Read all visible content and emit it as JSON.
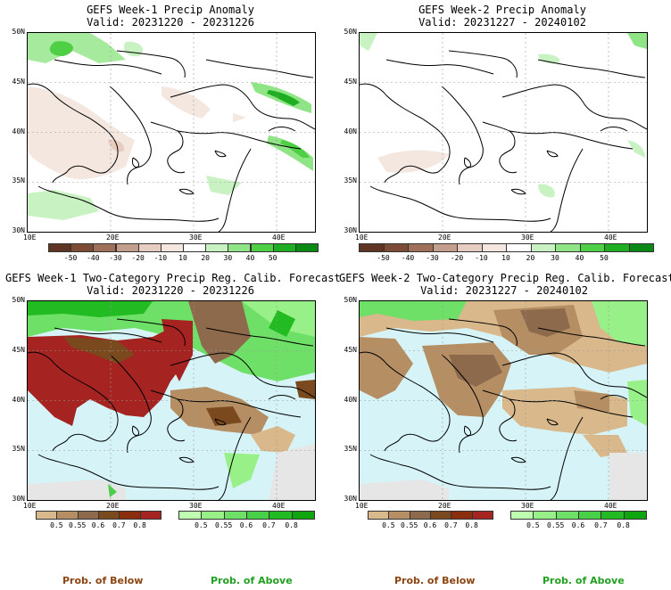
{
  "panels": [
    {
      "title": "GEFS Week-1 Precip Anomaly",
      "valid": "Valid: 20231220 - 20231226"
    },
    {
      "title": "GEFS Week-2 Precip Anomaly",
      "valid": "Valid: 20231227 - 20240102"
    },
    {
      "title": "GEFS Week-1 Two-Category Precip Reg. Calib. Forecast",
      "valid": "Valid: 20231220 - 20231226"
    },
    {
      "title": "GEFS Week-2 Two-Category Precip Reg. Calib. Forecast",
      "valid": "Valid: 20231227 - 20240102"
    }
  ],
  "lat_labels": [
    "50N",
    "45N",
    "40N",
    "35N",
    "30N"
  ],
  "lon_labels": [
    "10E",
    "20E",
    "30E",
    "40E"
  ],
  "anomaly_scale": {
    "labels": [
      "-50",
      "-40",
      "-30",
      "-20",
      "-10",
      "10",
      "20",
      "30",
      "40",
      "50"
    ],
    "colors": [
      "#5e3623",
      "#7d4c37",
      "#9e6f5b",
      "#c49e8c",
      "#e6cdc0",
      "#f3e7e0",
      "#ffffff",
      "#c9f2c3",
      "#8fe585",
      "#4fcf46",
      "#1fae21",
      "#0a8a15"
    ]
  },
  "prob_below_scale": {
    "labels": [
      "0.5",
      "0.55",
      "0.6",
      "0.7",
      "0.8"
    ],
    "colors": [
      "#d9b98b",
      "#b58e64",
      "#8e6a4c",
      "#7a4a1e",
      "#8b2e10",
      "#a52422"
    ]
  },
  "prob_above_scale": {
    "labels": [
      "0.5",
      "0.55",
      "0.6",
      "0.7",
      "0.8"
    ],
    "colors": [
      "#bfffb0",
      "#98f089",
      "#6fe067",
      "#48d048",
      "#22bb22",
      "#0ea50e"
    ]
  },
  "legend": {
    "below": "Prob. of Below",
    "above": "Prob. of Above",
    "below_color": "#8b4513",
    "above_color": "#22a022"
  },
  "colors": {
    "sea_fill": "#d6f4f8",
    "missing_fill": "#e6e6e6"
  }
}
